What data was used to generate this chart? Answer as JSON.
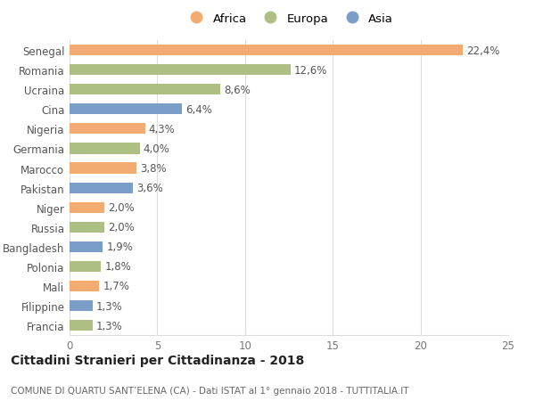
{
  "countries": [
    "Francia",
    "Filippine",
    "Mali",
    "Polonia",
    "Bangladesh",
    "Russia",
    "Niger",
    "Pakistan",
    "Marocco",
    "Germania",
    "Nigeria",
    "Cina",
    "Ucraina",
    "Romania",
    "Senegal"
  ],
  "values": [
    1.3,
    1.3,
    1.7,
    1.8,
    1.9,
    2.0,
    2.0,
    3.6,
    3.8,
    4.0,
    4.3,
    6.4,
    8.6,
    12.6,
    22.4
  ],
  "labels": [
    "1,3%",
    "1,3%",
    "1,7%",
    "1,8%",
    "1,9%",
    "2,0%",
    "2,0%",
    "3,6%",
    "3,8%",
    "4,0%",
    "4,3%",
    "6,4%",
    "8,6%",
    "12,6%",
    "22,4%"
  ],
  "continents": [
    "Europa",
    "Asia",
    "Africa",
    "Europa",
    "Asia",
    "Europa",
    "Africa",
    "Asia",
    "Africa",
    "Europa",
    "Africa",
    "Asia",
    "Europa",
    "Europa",
    "Africa"
  ],
  "colors": {
    "Africa": "#F2AC72",
    "Europa": "#AEBF84",
    "Asia": "#7A9EC8"
  },
  "xlim": [
    0,
    25
  ],
  "xticks": [
    0,
    5,
    10,
    15,
    20,
    25
  ],
  "title": "Cittadini Stranieri per Cittadinanza - 2018",
  "subtitle": "COMUNE DI QUARTU SANT’ELENA (CA) - Dati ISTAT al 1° gennaio 2018 - TUTTITALIA.IT",
  "background_color": "#ffffff",
  "grid_color": "#dddddd",
  "bar_height": 0.55,
  "title_fontsize": 10,
  "subtitle_fontsize": 7.5,
  "tick_fontsize": 8.5,
  "label_fontsize": 8.5,
  "legend_fontsize": 9.5
}
